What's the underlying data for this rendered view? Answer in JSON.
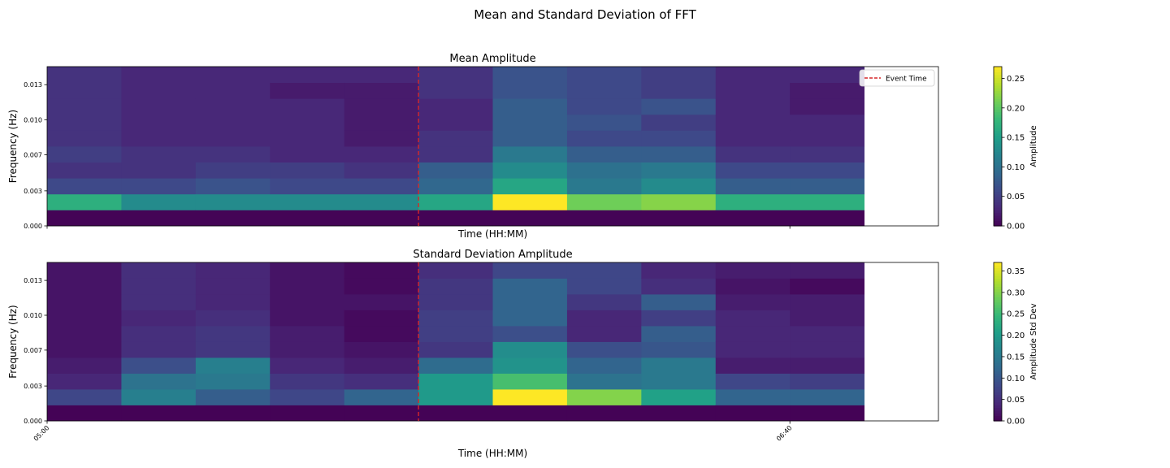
{
  "figure": {
    "title": "Mean and Standard Deviation of FFT"
  },
  "colors": {
    "event_line": "#d62728",
    "viridis": [
      "#440154",
      "#482878",
      "#3e4989",
      "#31688e",
      "#26828e",
      "#1f9e89",
      "#35b779",
      "#6ece58",
      "#b5de2b",
      "#fde725"
    ]
  },
  "chart_data": [
    {
      "type": "heatmap",
      "title": "Mean Amplitude",
      "xlabel": "Time (HH:MM)",
      "ylabel": "Frequency (Hz)",
      "x_ticks": [
        "05:00",
        "06:40"
      ],
      "y_ticks": [
        "0.000",
        "0.003",
        "0.007",
        "0.010",
        "0.013"
      ],
      "y_tick_values": [
        0.0,
        0.0033,
        0.0067,
        0.01,
        0.0133
      ],
      "ylim": [
        0,
        0.015
      ],
      "show_x_tick_labels": false,
      "event_time": {
        "label": "Event Time",
        "x": "05:50"
      },
      "legend": {
        "position": "top-right",
        "entries": [
          "Event Time"
        ]
      },
      "colorbar": {
        "label": "Amplitude",
        "range": [
          0,
          0.27
        ],
        "ticks": [
          "0.00",
          "0.05",
          "0.10",
          "0.15",
          "0.20",
          "0.25"
        ],
        "tick_values": [
          0,
          0.05,
          0.1,
          0.15,
          0.2,
          0.25
        ]
      },
      "time_bins": [
        "05:00",
        "05:10",
        "05:20",
        "05:30",
        "05:40",
        "05:50",
        "06:00",
        "06:10",
        "06:20",
        "06:30",
        "06:40"
      ],
      "frequency_bins": [
        0.0,
        0.0015,
        0.003,
        0.0045,
        0.006,
        0.0075,
        0.009,
        0.0105,
        0.012,
        0.0135
      ],
      "values": [
        [
          0.002,
          0.17,
          0.06,
          0.04,
          0.05,
          0.04,
          0.04,
          0.04,
          0.04,
          0.04
        ],
        [
          0.002,
          0.13,
          0.06,
          0.04,
          0.04,
          0.03,
          0.03,
          0.03,
          0.03,
          0.03
        ],
        [
          0.002,
          0.13,
          0.07,
          0.05,
          0.04,
          0.03,
          0.03,
          0.03,
          0.03,
          0.03
        ],
        [
          0.002,
          0.13,
          0.06,
          0.05,
          0.03,
          0.03,
          0.03,
          0.03,
          0.02,
          0.03
        ],
        [
          0.002,
          0.13,
          0.06,
          0.04,
          0.03,
          0.02,
          0.02,
          0.02,
          0.02,
          0.03
        ],
        [
          0.002,
          0.16,
          0.09,
          0.08,
          0.04,
          0.04,
          0.03,
          0.03,
          0.04,
          0.04
        ],
        [
          0.002,
          0.27,
          0.16,
          0.13,
          0.11,
          0.08,
          0.08,
          0.08,
          0.07,
          0.07
        ],
        [
          0.002,
          0.21,
          0.11,
          0.1,
          0.08,
          0.06,
          0.07,
          0.06,
          0.06,
          0.06
        ],
        [
          0.002,
          0.22,
          0.13,
          0.11,
          0.08,
          0.06,
          0.05,
          0.07,
          0.05,
          0.05
        ],
        [
          0.002,
          0.17,
          0.08,
          0.06,
          0.04,
          0.03,
          0.03,
          0.03,
          0.03,
          0.03
        ],
        [
          0.002,
          0.17,
          0.08,
          0.06,
          0.04,
          0.03,
          0.03,
          0.02,
          0.02,
          0.03
        ]
      ]
    },
    {
      "type": "heatmap",
      "title": "Standard Deviation Amplitude",
      "xlabel": "Time (HH:MM)",
      "ylabel": "Frequency (Hz)",
      "x_ticks": [
        "05:00",
        "06:40"
      ],
      "y_ticks": [
        "0.000",
        "0.003",
        "0.007",
        "0.010",
        "0.013"
      ],
      "y_tick_values": [
        0.0,
        0.0033,
        0.0067,
        0.01,
        0.0133
      ],
      "ylim": [
        0,
        0.015
      ],
      "show_x_tick_labels": true,
      "event_time": {
        "label": "Event Time",
        "x": "05:50"
      },
      "colorbar": {
        "label": "Amplitude Std Dev",
        "range": [
          0,
          0.37
        ],
        "ticks": [
          "0.00",
          "0.05",
          "0.10",
          "0.15",
          "0.20",
          "0.25",
          "0.30",
          "0.35"
        ],
        "tick_values": [
          0,
          0.05,
          0.1,
          0.15,
          0.2,
          0.25,
          0.3,
          0.35
        ]
      },
      "time_bins": [
        "05:00",
        "05:10",
        "05:20",
        "05:30",
        "05:40",
        "05:50",
        "06:00",
        "06:10",
        "06:20",
        "06:30",
        "06:40"
      ],
      "frequency_bins": [
        0.0,
        0.0015,
        0.003,
        0.0045,
        0.006,
        0.0075,
        0.009,
        0.0105,
        0.012,
        0.0135
      ],
      "values": [
        [
          0.002,
          0.08,
          0.04,
          0.03,
          0.02,
          0.02,
          0.02,
          0.02,
          0.02,
          0.02
        ],
        [
          0.002,
          0.16,
          0.14,
          0.09,
          0.05,
          0.05,
          0.04,
          0.05,
          0.05,
          0.05
        ],
        [
          0.002,
          0.11,
          0.15,
          0.16,
          0.06,
          0.06,
          0.05,
          0.04,
          0.04,
          0.04
        ],
        [
          0.002,
          0.08,
          0.06,
          0.04,
          0.03,
          0.03,
          0.02,
          0.02,
          0.02,
          0.02
        ],
        [
          0.002,
          0.12,
          0.05,
          0.03,
          0.02,
          0.01,
          0.01,
          0.02,
          0.01,
          0.01
        ],
        [
          0.002,
          0.2,
          0.2,
          0.13,
          0.06,
          0.07,
          0.07,
          0.06,
          0.06,
          0.05
        ],
        [
          0.002,
          0.37,
          0.26,
          0.19,
          0.18,
          0.09,
          0.12,
          0.12,
          0.12,
          0.08
        ],
        [
          0.002,
          0.3,
          0.14,
          0.12,
          0.09,
          0.04,
          0.04,
          0.06,
          0.08,
          0.08
        ],
        [
          0.002,
          0.21,
          0.15,
          0.15,
          0.1,
          0.11,
          0.07,
          0.11,
          0.05,
          0.04
        ],
        [
          0.002,
          0.12,
          0.08,
          0.03,
          0.04,
          0.04,
          0.04,
          0.03,
          0.02,
          0.03
        ],
        [
          0.002,
          0.12,
          0.07,
          0.03,
          0.04,
          0.04,
          0.03,
          0.03,
          0.01,
          0.03
        ]
      ]
    }
  ]
}
